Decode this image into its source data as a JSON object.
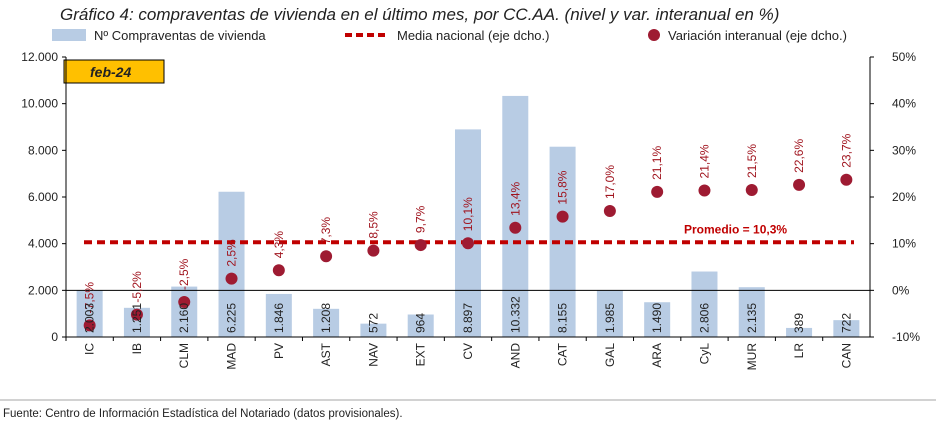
{
  "colors": {
    "bar": "#b8cce4",
    "dot": "#9e1b32",
    "avg_line": "#c00000",
    "pct_label": "#a0141e",
    "period_box": "#ffc000",
    "axis": "#000000"
  },
  "chart_data": {
    "type": "bar",
    "title": "Gráfico 4: compraventas de vivienda en el último mes, por CC.AA. (nivel y var. interanual en %)",
    "period_label": "feb-24",
    "source": "Fuente: Centro de Información Estadística del Notariado (datos provisionales).",
    "legend": {
      "bars": "Nº Compraventas de vivienda",
      "line": "Media nacional (eje dcho.)",
      "dots": "Variación interanual (eje dcho.)"
    },
    "categories": [
      "IC",
      "IB",
      "CLM",
      "MAD",
      "PV",
      "AST",
      "NAV",
      "EXT",
      "CV",
      "AND",
      "CAT",
      "GAL",
      "ARA",
      "CyL",
      "MUR",
      "LR",
      "CAN"
    ],
    "series": [
      {
        "name": "Nº Compraventas de vivienda",
        "axis": "left",
        "values": [
          2003,
          1251,
          2160,
          6225,
          1846,
          1208,
          572,
          964,
          8897,
          10332,
          8155,
          1985,
          1490,
          2806,
          2135,
          389,
          722
        ],
        "labels": [
          "2.003",
          "1.251",
          "2.160",
          "6.225",
          "1.846",
          "1.208",
          "572",
          "964",
          "8.897",
          "10.332",
          "8.155",
          "1.985",
          "1.490",
          "2.806",
          "2.135",
          "389",
          "722"
        ]
      },
      {
        "name": "Variación interanual (eje dcho.)",
        "axis": "right",
        "values": [
          -7.5,
          -5.2,
          -2.5,
          2.5,
          4.3,
          7.3,
          8.5,
          9.7,
          10.1,
          13.4,
          15.8,
          17.0,
          21.1,
          21.4,
          21.5,
          22.6,
          23.7
        ],
        "labels": [
          "-7,5%",
          "-5,2%",
          "-2,5%",
          "2,5%",
          "4,3%",
          "7,3%",
          "8,5%",
          "9,7%",
          "10,1%",
          "13,4%",
          "15,8%",
          "17,0%",
          "21,1%",
          "21,4%",
          "21,5%",
          "22,6%",
          "23,7%"
        ]
      },
      {
        "name": "Media nacional (eje dcho.)",
        "axis": "right",
        "value": 10.3,
        "label": "Promedio = 10,3%"
      }
    ],
    "y_left": {
      "min": 0,
      "max": 12000,
      "ticks": [
        0,
        2000,
        4000,
        6000,
        8000,
        10000,
        12000
      ],
      "tick_labels": [
        "0",
        "2.000",
        "4.000",
        "6.000",
        "8.000",
        "10.000",
        "12.000"
      ]
    },
    "y_right": {
      "min": -10,
      "max": 50,
      "ticks": [
        -10,
        0,
        10,
        20,
        30,
        40,
        50
      ],
      "tick_labels": [
        "-10%",
        "0%",
        "10%",
        "20%",
        "30%",
        "40%",
        "50%"
      ]
    },
    "grid": false,
    "legend_position": "top"
  }
}
